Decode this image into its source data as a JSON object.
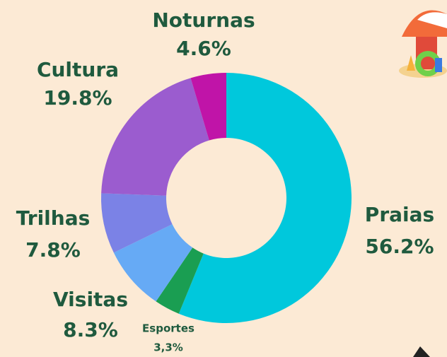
{
  "chart_data": {
    "type": "donut",
    "categories": [
      "Praias",
      "Esportes",
      "Visitas",
      "Trilhas",
      "Cultura",
      "Noturnas"
    ],
    "values": [
      56.2,
      3.3,
      8.3,
      7.8,
      19.8,
      4.6
    ],
    "value_labels": [
      "56.2%",
      "3,3%",
      "8.3%",
      "7.8%",
      "19.8%",
      "4.6%"
    ],
    "colors": [
      "#00c8dc",
      "#1a9e52",
      "#66aaf5",
      "#7b82e6",
      "#9b5ccf",
      "#c014a8"
    ]
  }
}
